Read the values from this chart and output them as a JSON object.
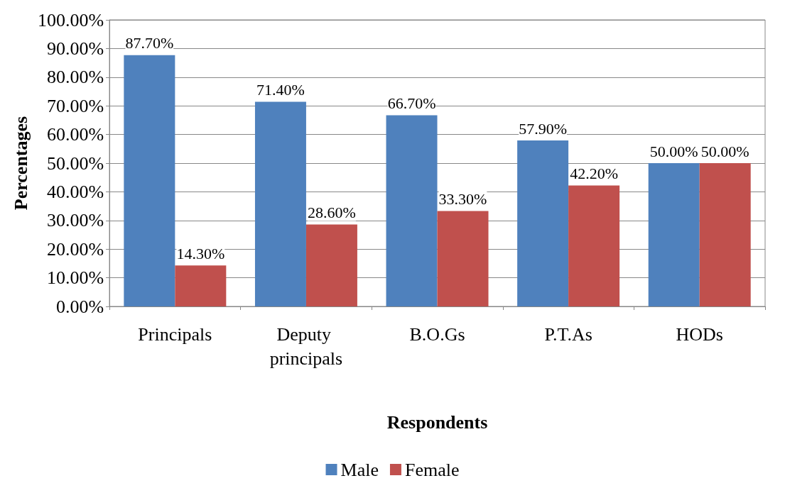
{
  "chart_data": {
    "type": "bar",
    "xlabel": "Respondents",
    "ylabel": "Percentages",
    "categories": [
      "Principals",
      "Deputy principals",
      "B.O.Gs",
      "P.T.As",
      "HODs"
    ],
    "series": [
      {
        "name": "Male",
        "color": "#4f81bd",
        "values": [
          87.7,
          71.4,
          66.7,
          57.9,
          50
        ],
        "value_labels": [
          "87.70%",
          "71.40%",
          "66.70%",
          "57.90%",
          "50.00%"
        ]
      },
      {
        "name": "Female",
        "color": "#c0504d",
        "values": [
          14.3,
          28.6,
          33.3,
          42.2,
          50
        ],
        "value_labels": [
          "14.30%",
          "28.60%",
          "33.30%",
          "42.20%",
          "50.00%"
        ]
      }
    ],
    "ylim": [
      0,
      100
    ],
    "yticks": [
      {
        "value": 0,
        "label": "0.00%"
      },
      {
        "value": 10,
        "label": "10.00%"
      },
      {
        "value": 20,
        "label": "20.00%"
      },
      {
        "value": 30,
        "label": "30.00%"
      },
      {
        "value": 40,
        "label": "40.00%"
      },
      {
        "value": 50,
        "label": "50.00%"
      },
      {
        "value": 60,
        "label": "60.00%"
      },
      {
        "value": 70,
        "label": "70.00%"
      },
      {
        "value": 80,
        "label": "80.00%"
      },
      {
        "value": 90,
        "label": "90.00%"
      },
      {
        "value": 100,
        "label": "100.00%"
      }
    ],
    "grid": "y",
    "legend": "bottom"
  }
}
